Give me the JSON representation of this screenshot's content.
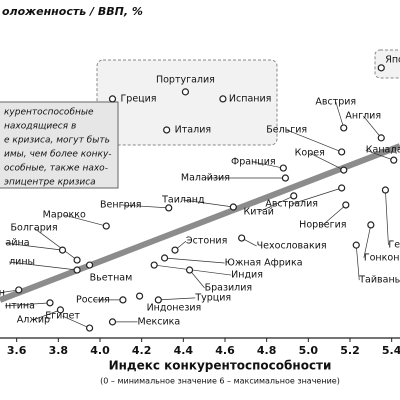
{
  "chart_data": {
    "type": "scatter",
    "title": "оложенность / ВВП, %",
    "x_label": "Индекс конкурентоспособности",
    "x_sublabel": "(0 – минимальное значение   6 – максимальное значение)",
    "annotation": [
      "курентоспособные",
      "находящиеся в",
      "е кризиса, могут быть",
      "имы, чем более конку-",
      "особные, также нахо-",
      "эпицентре кризиса"
    ],
    "xlim": [
      3.52,
      5.44
    ],
    "ylim": [
      0,
      100
    ],
    "xticks": [
      {
        "value": 3.6,
        "label": "3.6"
      },
      {
        "value": 3.8,
        "label": "3.8"
      },
      {
        "value": 4.0,
        "label": "4.0"
      },
      {
        "value": 4.2,
        "label": "4.2"
      },
      {
        "value": 4.4,
        "label": "4.4"
      },
      {
        "value": 4.6,
        "label": "4.6"
      },
      {
        "value": 4.8,
        "label": "4.8"
      },
      {
        "value": 5.0,
        "label": "5.0"
      },
      {
        "value": 5.2,
        "label": "5.2"
      },
      {
        "value": 5.4,
        "label": "5.4"
      }
    ],
    "color": "#222222",
    "trend": {
      "x": [
        3.52,
        5.44
      ],
      "y": [
        13.0,
        65.5
      ],
      "color": "#8c8c8c"
    },
    "points": [
      {
        "label": "Португалия",
        "x": 4.41,
        "y": 84.0
      },
      {
        "label": "Греция",
        "x": 4.06,
        "y": 81.6
      },
      {
        "label": "Испания",
        "x": 4.59,
        "y": 81.6
      },
      {
        "label": "Италия",
        "x": 4.32,
        "y": 71.0
      },
      {
        "label": "Япо",
        "x": 5.35,
        "y": 92.2
      },
      {
        "label": "Австрия",
        "x": 5.17,
        "y": 71.7
      },
      {
        "label": "Англия",
        "x": 5.35,
        "y": 68.3
      },
      {
        "label": "Бельгия",
        "x": 5.16,
        "y": 63.5
      },
      {
        "label": "Канада",
        "x": 5.41,
        "y": 60.7
      },
      {
        "label": "Корея",
        "x": 5.17,
        "y": 57.3
      },
      {
        "label": "Франция",
        "x": 4.88,
        "y": 58.0
      },
      {
        "label": "Малайзия",
        "x": 4.89,
        "y": 54.6
      },
      {
        "label": "Австралия",
        "x": 5.16,
        "y": 51.2
      },
      {
        "label": "Китай",
        "x": 4.93,
        "y": 48.5
      },
      {
        "label": "Таиланд",
        "x": 4.64,
        "y": 44.7
      },
      {
        "label": "Венгрия",
        "x": 4.33,
        "y": 44.4
      },
      {
        "label": "Марокко",
        "x": 4.03,
        "y": 38.2
      },
      {
        "label": "Норвегия",
        "x": 5.18,
        "y": 45.4
      },
      {
        "label": "Эстония",
        "x": 4.36,
        "y": 30.0
      },
      {
        "label": "Чехословакия",
        "x": 4.68,
        "y": 34.1
      },
      {
        "label": "Южная Африка",
        "x": 4.31,
        "y": 27.3
      },
      {
        "label": "Индия",
        "x": 4.26,
        "y": 24.9
      },
      {
        "label": "Бразилия",
        "x": 4.43,
        "y": 23.2
      },
      {
        "label": "Турция",
        "x": 4.28,
        "y": 13.0
      },
      {
        "label": "Индонезия",
        "x": 4.19,
        "y": 14.3
      },
      {
        "label": "Мексика",
        "x": 4.06,
        "y": 5.5
      },
      {
        "label": "Россия",
        "x": 4.11,
        "y": 13.0
      },
      {
        "label": "Вьетнам",
        "x": 3.95,
        "y": 24.9
      },
      {
        "label": "Египет",
        "x": 3.95,
        "y": 3.4
      },
      {
        "label": "Алжир",
        "x": 3.81,
        "y": 9.6
      },
      {
        "label": "Болгария",
        "x": 3.89,
        "y": 26.6
      },
      {
        "label": "Гонконг",
        "x": 5.3,
        "y": 38.6
      },
      {
        "label": "Тайвань",
        "x": 5.23,
        "y": 31.7
      },
      {
        "label": "Гер",
        "x": 5.37,
        "y": 50.5
      },
      {
        "label": "айна",
        "x": 3.82,
        "y": 30.0
      },
      {
        "label": "лины",
        "x": 3.89,
        "y": 23.2
      },
      {
        "label": "н",
        "x": 3.61,
        "y": 16.4
      },
      {
        "label": "нтина",
        "x": 3.76,
        "y": 12.0
      }
    ]
  }
}
